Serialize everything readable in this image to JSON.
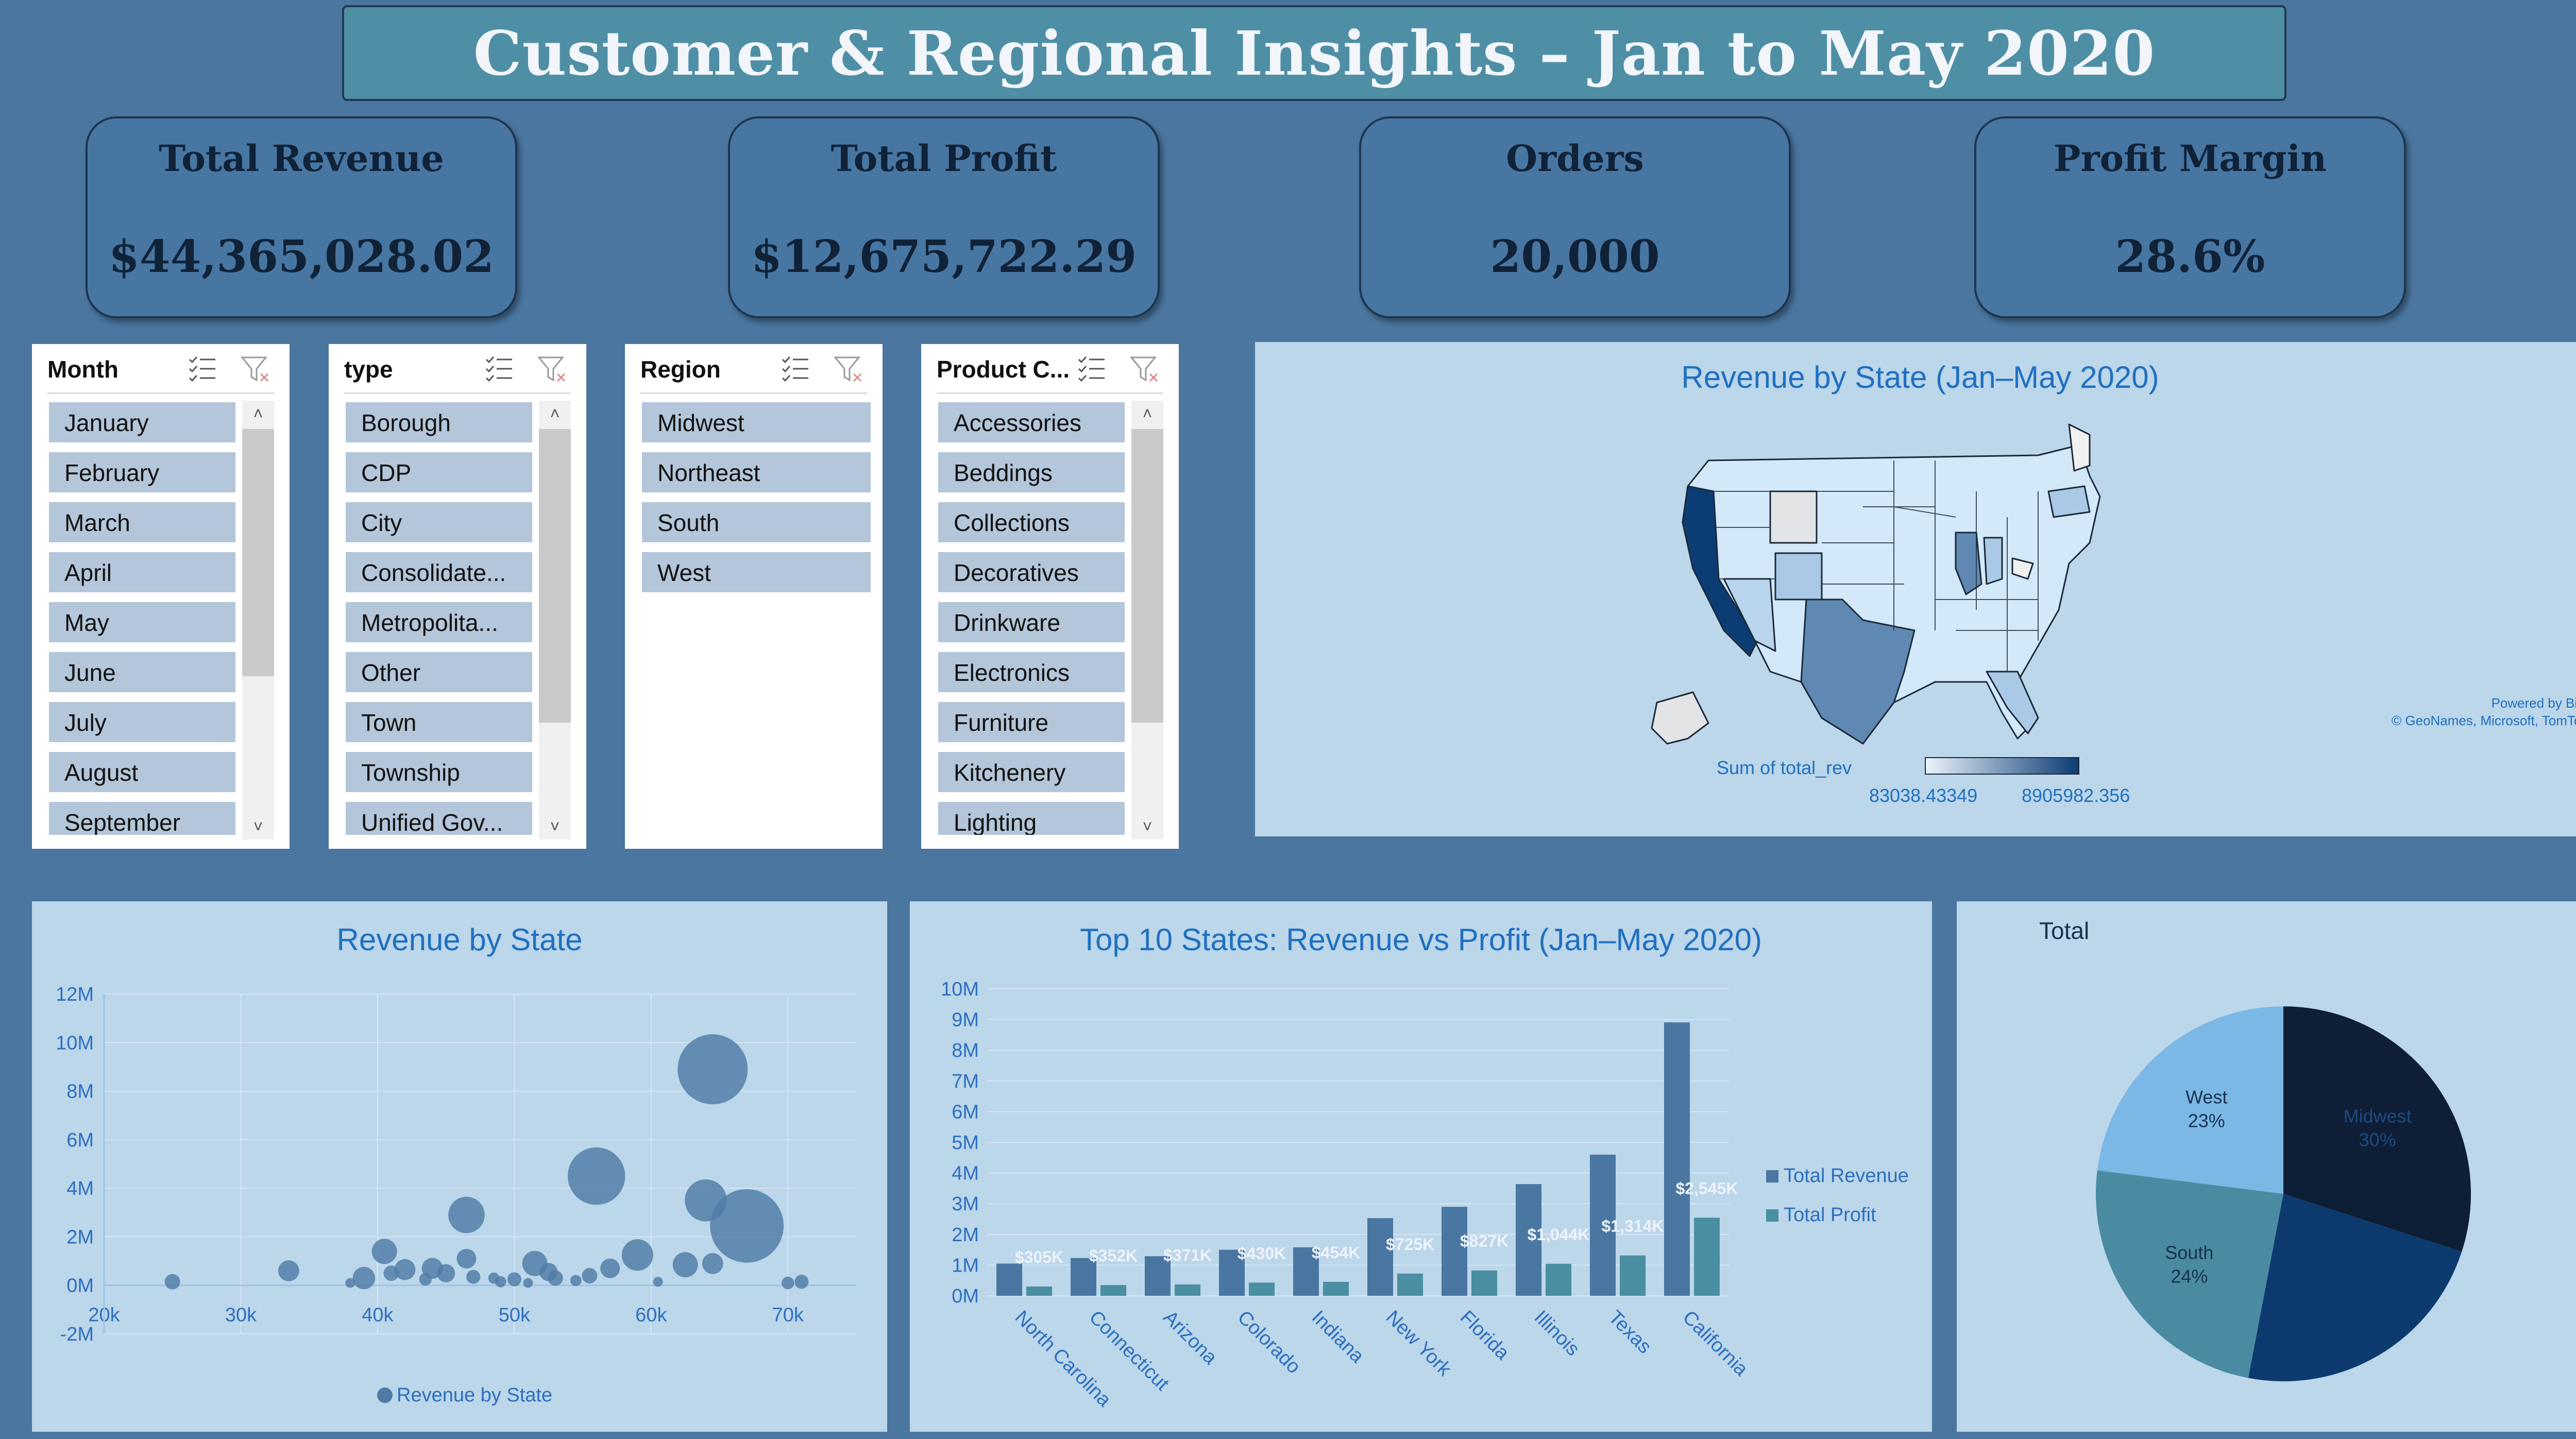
{
  "title": "Customer & Regional Insights – Jan to May 2020",
  "kpis": [
    {
      "label": "Total Revenue",
      "value": "$44,365,028.02"
    },
    {
      "label": "Total Profit",
      "value": "$12,675,722.29"
    },
    {
      "label": "Orders",
      "value": "20,000"
    },
    {
      "label": "Profit Margin",
      "value": "28.6%"
    }
  ],
  "slicers": [
    {
      "title": "Month",
      "items": [
        "January",
        "February",
        "March",
        "April",
        "May",
        "June",
        "July",
        "August",
        "September"
      ]
    },
    {
      "title": "type",
      "items": [
        "Borough",
        "CDP",
        "City",
        "Consolidate...",
        "Metropolita...",
        "Other",
        "Town",
        "Township",
        "Unified Gov..."
      ]
    },
    {
      "title": "Region",
      "items": [
        "Midwest",
        "Northeast",
        "South",
        "West"
      ]
    },
    {
      "title": "Product C...",
      "items": [
        "Accessories",
        "Beddings",
        "Collections",
        "Decoratives",
        "Drinkware",
        "Electronics",
        "Furniture",
        "Kitchenery",
        "Lighting"
      ]
    }
  ],
  "map": {
    "title": "Revenue by State (Jan–May 2020)",
    "credit_line1": "Powered by Bing",
    "credit_line2": "© GeoNames, Microsoft, TomTom",
    "legend_title": "Sum of total_rev",
    "legend_min": "83038.43349",
    "legend_max": "8905982.356",
    "scale_colors": [
      "#eaf3fb",
      "#0c3c74"
    ]
  },
  "bubble": {
    "title": "Revenue by State",
    "legend": "Revenue by State"
  },
  "combo": {
    "title": "Top 10 States: Revenue vs Profit (Jan–May 2020)",
    "legend_revenue": "Total Revenue",
    "legend_profit": "Total Profit"
  },
  "pie": {
    "title": "Total"
  },
  "colors": {
    "background": "#4a76a0",
    "panel": "#bcd6ea",
    "revenue_bar": "#4a76a2",
    "profit_bar": "#4a8ea2",
    "bubble": "#4f7ba6"
  },
  "chart_data": [
    {
      "type": "scatter",
      "title": "Revenue by State",
      "xlim": [
        20000,
        75000
      ],
      "ylim": [
        -2000000,
        12000000
      ],
      "x_ticks": [
        "20k",
        "30k",
        "40k",
        "50k",
        "60k",
        "70k"
      ],
      "y_ticks": [
        "12M",
        "10M",
        "8M",
        "6M",
        "4M",
        "2M",
        "0M",
        "-2M"
      ],
      "legend": "Revenue by State",
      "points": [
        {
          "x": 64500,
          "y": 8900000,
          "r": 1.0
        },
        {
          "x": 67000,
          "y": 2450000,
          "r": 1.05
        },
        {
          "x": 56000,
          "y": 4500000,
          "r": 0.82
        },
        {
          "x": 64000,
          "y": 3500000,
          "r": 0.6
        },
        {
          "x": 46500,
          "y": 2900000,
          "r": 0.52
        },
        {
          "x": 59000,
          "y": 1250000,
          "r": 0.45
        },
        {
          "x": 40500,
          "y": 1400000,
          "r": 0.36
        },
        {
          "x": 51500,
          "y": 900000,
          "r": 0.36
        },
        {
          "x": 62500,
          "y": 850000,
          "r": 0.36
        },
        {
          "x": 57000,
          "y": 700000,
          "r": 0.28
        },
        {
          "x": 64500,
          "y": 900000,
          "r": 0.3
        },
        {
          "x": 46500,
          "y": 1100000,
          "r": 0.28
        },
        {
          "x": 42000,
          "y": 650000,
          "r": 0.3
        },
        {
          "x": 44000,
          "y": 700000,
          "r": 0.3
        },
        {
          "x": 45000,
          "y": 500000,
          "r": 0.26
        },
        {
          "x": 39000,
          "y": 300000,
          "r": 0.32
        },
        {
          "x": 33500,
          "y": 600000,
          "r": 0.3
        },
        {
          "x": 52500,
          "y": 550000,
          "r": 0.26
        },
        {
          "x": 53000,
          "y": 300000,
          "r": 0.22
        },
        {
          "x": 55500,
          "y": 400000,
          "r": 0.22
        },
        {
          "x": 41000,
          "y": 500000,
          "r": 0.22
        },
        {
          "x": 47000,
          "y": 350000,
          "r": 0.2
        },
        {
          "x": 50000,
          "y": 250000,
          "r": 0.2
        },
        {
          "x": 25000,
          "y": 150000,
          "r": 0.22
        },
        {
          "x": 71000,
          "y": 150000,
          "r": 0.2
        },
        {
          "x": 70000,
          "y": 100000,
          "r": 0.18
        },
        {
          "x": 43500,
          "y": 250000,
          "r": 0.18
        },
        {
          "x": 54500,
          "y": 200000,
          "r": 0.16
        },
        {
          "x": 49000,
          "y": 150000,
          "r": 0.16
        },
        {
          "x": 60500,
          "y": 150000,
          "r": 0.14
        },
        {
          "x": 38000,
          "y": 100000,
          "r": 0.14
        },
        {
          "x": 48500,
          "y": 300000,
          "r": 0.16
        },
        {
          "x": 51000,
          "y": 100000,
          "r": 0.14
        }
      ]
    },
    {
      "type": "bar",
      "title": "Top 10 States: Revenue vs Profit (Jan–May 2020)",
      "categories": [
        "North Carolina",
        "Connecticut",
        "Arizona",
        "Colorado",
        "Indiana",
        "New York",
        "Florida",
        "Illinois",
        "Texas",
        "California"
      ],
      "series": [
        {
          "name": "Total Revenue",
          "values": [
            1050000,
            1230000,
            1290000,
            1500000,
            1580000,
            2530000,
            2900000,
            3640000,
            4600000,
            8906000
          ]
        },
        {
          "name": "Total Profit",
          "values": [
            305000,
            352000,
            371000,
            430000,
            454000,
            725000,
            827000,
            1044000,
            1314000,
            2545000
          ],
          "data_labels": [
            "$305K",
            "$352K",
            "$371K",
            "$430K",
            "$454K",
            "$725K",
            "$827K",
            "$1,044K",
            "$1,314K",
            "$2,545K"
          ]
        }
      ],
      "ylim": [
        0,
        10000000
      ],
      "y_ticks": [
        "10M",
        "9M",
        "8M",
        "7M",
        "6M",
        "5M",
        "4M",
        "3M",
        "2M",
        "1M",
        "0M"
      ]
    },
    {
      "type": "pie",
      "title": "Total",
      "slices": [
        {
          "label": "Midwest",
          "pct_label": "30%",
          "value": 30,
          "color": "#0d1e36"
        },
        {
          "label": "Northeast",
          "pct_label": "",
          "value": 23,
          "color": "#0d3a6e"
        },
        {
          "label": "South",
          "pct_label": "24%",
          "value": 24,
          "color": "#4a8ba2"
        },
        {
          "label": "West",
          "pct_label": "23%",
          "value": 23,
          "color": "#7bb8e6"
        }
      ]
    }
  ]
}
